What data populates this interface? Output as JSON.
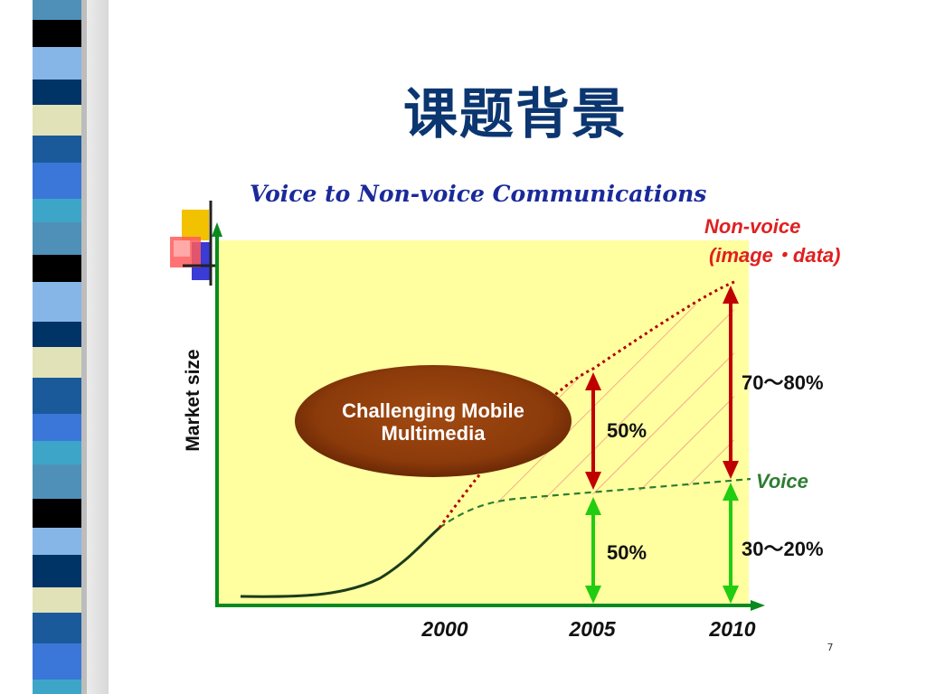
{
  "slide": {
    "title": "课题背景",
    "page_number": "7"
  },
  "diagram": {
    "heading": "Voice to Non-voice Communications",
    "y_axis_label": "Market size",
    "x_ticks": [
      "2000",
      "2005",
      "2010"
    ],
    "nonvoice_label_line1": "Non-voice",
    "nonvoice_label_line2": "(image・data)",
    "voice_label": "Voice",
    "ellipse_line1": "Challenging Mobile",
    "ellipse_line2": "Multimedia",
    "share_2005_nonvoice": "50%",
    "share_2005_voice": "50%",
    "share_2010_nonvoice": "70～80%",
    "share_2010_voice": "30～20%"
  },
  "colors": {
    "title": "#0b3670",
    "plot_background": "#ffffa0",
    "axis": "#0a8a1e",
    "nonvoice": "#c00000",
    "voice_arrow": "#22cc11",
    "voice_curve": "#2e7d32",
    "ellipse": "#8b3a0a",
    "hatch": "#f08080"
  }
}
